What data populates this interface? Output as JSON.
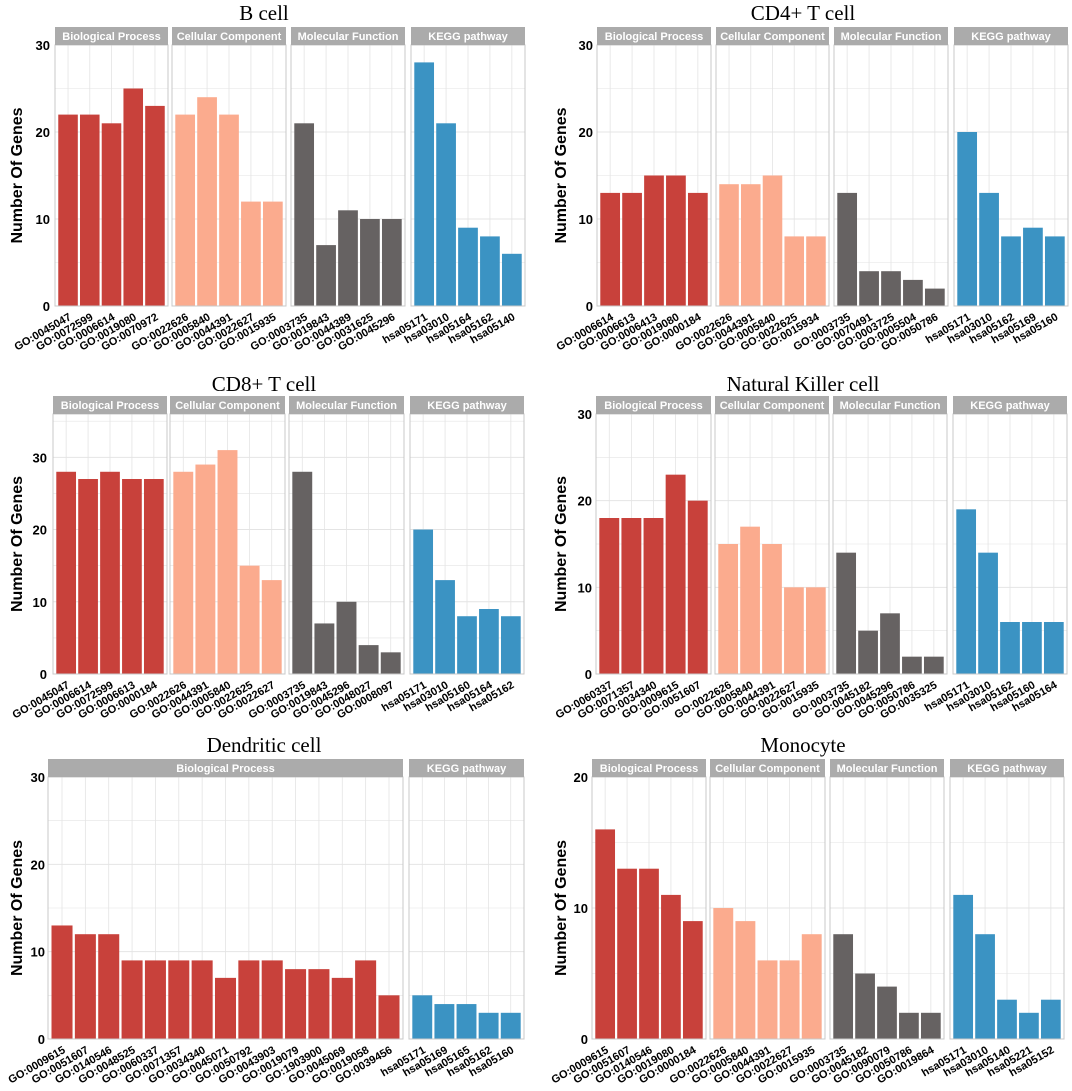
{
  "colors": {
    "Biological Process": "#c8413b",
    "Cellular Component": "#fbab8e",
    "Molecular Function": "#666262",
    "KEGG pathway": "#3b93c3",
    "strip": "#ababab",
    "grid": "#e4e4e4",
    "frame": "#c8c8c8"
  },
  "chart_data": [
    {
      "type": "bar",
      "title": "B cell",
      "ylabel": "Number Of Genes",
      "ylim": [
        0,
        30
      ],
      "yticks": [
        0,
        10,
        20,
        30
      ],
      "facets": [
        {
          "name": "Biological Process",
          "categories": [
            "GO:0045047",
            "GO:0072599",
            "GO:0006614",
            "GO:0019080",
            "GO:0070972"
          ],
          "values": [
            22,
            22,
            21,
            25,
            23
          ]
        },
        {
          "name": "Cellular Component",
          "categories": [
            "GO:0022626",
            "GO:0005840",
            "GO:0044391",
            "GO:0022627",
            "GO:0015935"
          ],
          "values": [
            22,
            24,
            22,
            12,
            12
          ]
        },
        {
          "name": "Molecular Function",
          "categories": [
            "GO:0003735",
            "GO:0019843",
            "GO:0044389",
            "GO:0031625",
            "GO:0045296"
          ],
          "values": [
            21,
            7,
            11,
            10,
            10
          ]
        },
        {
          "name": "KEGG pathway",
          "categories": [
            "hsa05171",
            "hsa03010",
            "hsa05164",
            "hsa05162",
            "hsa05140"
          ],
          "values": [
            28,
            21,
            9,
            8,
            6
          ]
        }
      ]
    },
    {
      "type": "bar",
      "title": "CD4+ T cell",
      "ylabel": "Number Of Genes",
      "ylim": [
        0,
        30
      ],
      "yticks": [
        0,
        10,
        20,
        30
      ],
      "facets": [
        {
          "name": "Biological Process",
          "categories": [
            "GO:0006614",
            "GO:0006613",
            "GO:0006413",
            "GO:0019080",
            "GO:0000184"
          ],
          "values": [
            13,
            13,
            15,
            15,
            13
          ]
        },
        {
          "name": "Cellular Component",
          "categories": [
            "GO:0022626",
            "GO:0044391",
            "GO:0005840",
            "GO:0022625",
            "GO:0015934"
          ],
          "values": [
            14,
            14,
            15,
            8,
            8
          ]
        },
        {
          "name": "Molecular Function",
          "categories": [
            "GO:0003735",
            "GO:0070491",
            "GO:0003725",
            "GO:0005504",
            "GO:0050786"
          ],
          "values": [
            13,
            4,
            4,
            3,
            2
          ]
        },
        {
          "name": "KEGG pathway",
          "categories": [
            "hsa05171",
            "hsa03010",
            "hsa05162",
            "hsa05169",
            "hsa05160"
          ],
          "values": [
            20,
            13,
            8,
            9,
            8
          ]
        }
      ]
    },
    {
      "type": "bar",
      "title": "CD8+ T cell",
      "ylabel": "Number Of Genes",
      "ylim": [
        0,
        36
      ],
      "yticks": [
        0,
        10,
        20,
        30
      ],
      "facets": [
        {
          "name": "Biological Process",
          "categories": [
            "GO:0045047",
            "GO:0006614",
            "GO:0072599",
            "GO:0006613",
            "GO:0000184"
          ],
          "values": [
            28,
            27,
            28,
            27,
            27
          ]
        },
        {
          "name": "Cellular Component",
          "categories": [
            "GO:0022626",
            "GO:0044391",
            "GO:0005840",
            "GO:0022625",
            "GO:0022627"
          ],
          "values": [
            28,
            29,
            31,
            15,
            13
          ]
        },
        {
          "name": "Molecular Function",
          "categories": [
            "GO:0003735",
            "GO:0019843",
            "GO:0045296",
            "GO:0048027",
            "GO:0008097"
          ],
          "values": [
            28,
            7,
            10,
            4,
            3
          ]
        },
        {
          "name": "KEGG pathway",
          "categories": [
            "hsa05171",
            "hsa03010",
            "hsa05160",
            "hsa05164",
            "hsa05162"
          ],
          "values": [
            20,
            13,
            8,
            9,
            8
          ]
        }
      ]
    },
    {
      "type": "bar",
      "title": "Natural Killer cell",
      "ylabel": "Number Of Genes",
      "ylim": [
        0,
        30
      ],
      "yticks": [
        0,
        10,
        20,
        30
      ],
      "facets": [
        {
          "name": "Biological Process",
          "categories": [
            "GO:0060337",
            "GO:0071357",
            "GO:0034340",
            "GO:0009615",
            "GO:0051607"
          ],
          "values": [
            18,
            18,
            18,
            23,
            20
          ]
        },
        {
          "name": "Cellular Component",
          "categories": [
            "GO:0022626",
            "GO:0005840",
            "GO:0044391",
            "GO:0022627",
            "GO:0015935"
          ],
          "values": [
            15,
            17,
            15,
            10,
            10
          ]
        },
        {
          "name": "Molecular Function",
          "categories": [
            "GO:0003735",
            "GO:0045182",
            "GO:0045296",
            "GO:0050786",
            "GO:0035325"
          ],
          "values": [
            14,
            5,
            7,
            2,
            2
          ]
        },
        {
          "name": "KEGG pathway",
          "categories": [
            "hsa05171",
            "hsa03010",
            "hsa05162",
            "hsa05160",
            "hsa05164"
          ],
          "values": [
            19,
            14,
            6,
            6,
            6
          ]
        }
      ]
    },
    {
      "type": "bar",
      "title": "Dendritic cell",
      "ylabel": "Number Of Genes",
      "ylim": [
        0,
        30
      ],
      "yticks": [
        0,
        10,
        20,
        30
      ],
      "facets": [
        {
          "name": "Biological Process",
          "categories": [
            "GO:0009615",
            "GO:0051607",
            "GO:0140546",
            "GO:0048525",
            "GO:0060337",
            "GO:0071357",
            "GO:0034340",
            "GO:0045071",
            "GO:0050792",
            "GO:0043903",
            "GO:0019079",
            "GO:1903900",
            "GO:0045069",
            "GO:0019058",
            "GO:0039456"
          ],
          "values": [
            13,
            12,
            12,
            9,
            9,
            9,
            9,
            7,
            9,
            9,
            8,
            8,
            7,
            9,
            5
          ]
        },
        {
          "name": "KEGG pathway",
          "categories": [
            "hsa05171",
            "hsa05169",
            "hsa05165",
            "hsa05162",
            "hsa05160"
          ],
          "values": [
            5,
            4,
            4,
            3,
            3
          ]
        }
      ]
    },
    {
      "type": "bar",
      "title": "Monocyte",
      "ylabel": "Number Of Genes",
      "ylim": [
        0,
        20
      ],
      "yticks": [
        0,
        10,
        20
      ],
      "facets": [
        {
          "name": "Biological Process",
          "categories": [
            "GO:0009615",
            "GO:0051607",
            "GO:0140546",
            "GO:0019080",
            "GO:0000184"
          ],
          "values": [
            16,
            13,
            13,
            11,
            9
          ]
        },
        {
          "name": "Cellular Component",
          "categories": [
            "GO:0022626",
            "GO:0005840",
            "GO:0044391",
            "GO:0022627",
            "GO:0015935"
          ],
          "values": [
            10,
            9,
            6,
            6,
            8
          ]
        },
        {
          "name": "Molecular Function",
          "categories": [
            "GO:0003735",
            "GO:0045182",
            "GO:0090079",
            "GO:0050786",
            "GO:0019864"
          ],
          "values": [
            8,
            5,
            4,
            2,
            2
          ]
        },
        {
          "name": "KEGG pathway",
          "categories": [
            "hsa05171",
            "hsa03010",
            "hsa05140",
            "hsa05221",
            "hsa05152"
          ],
          "values": [
            11,
            8,
            3,
            2,
            3
          ]
        }
      ]
    }
  ]
}
